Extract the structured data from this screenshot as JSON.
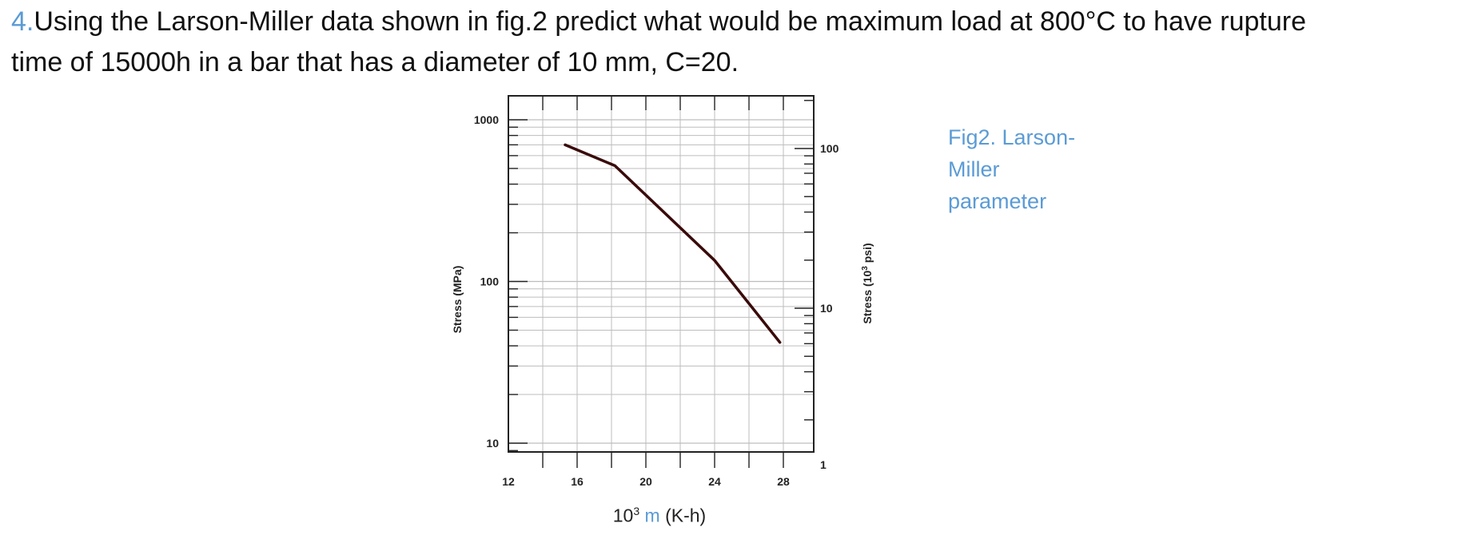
{
  "question": {
    "number": "4.",
    "line1": "Using the Larson-Miller data shown in fig.2 predict what would be maximum load at 800°C to have rupture",
    "line2": "time of 15000h in a bar that has a diameter of 10 mm, C=20."
  },
  "caption": {
    "line1": "Fig2. Larson-",
    "line2": "Miller",
    "line3": "parameter"
  },
  "colors": {
    "accent": "#5b9bd5",
    "curve": "#3a0a0a",
    "grid": "#bdbdbd"
  },
  "chart_data": {
    "type": "line",
    "x_scale": "linear",
    "y_scale": "log",
    "xlim": [
      12,
      30
    ],
    "ylim": [
      10,
      1000
    ],
    "y2lim": [
      1,
      150
    ],
    "x_ticks": [
      12,
      16,
      20,
      24,
      28
    ],
    "x_tick_labels": [
      "12",
      "16",
      "20",
      "24",
      "28"
    ],
    "y_ticks": [
      10,
      100,
      1000
    ],
    "y_tick_labels": [
      "10",
      "100",
      "1000"
    ],
    "y2_ticks": [
      1,
      10,
      100
    ],
    "y2_tick_labels": [
      "1",
      "10",
      "100"
    ],
    "ylabel": "Stress (MPa)",
    "y2label": "Stress (10³ psi)",
    "xlabel": {
      "prefix": "10",
      "exponent": "3",
      "symbol": "m",
      "unit": "(K-h)"
    },
    "grid": true,
    "series": [
      {
        "x": [
          15.3,
          18.2,
          24.0,
          27.8
        ],
        "y": [
          700,
          520,
          135,
          42
        ]
      }
    ]
  }
}
